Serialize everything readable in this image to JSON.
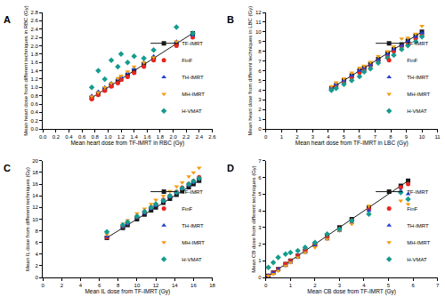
{
  "chart_data": [
    {
      "type": "scatter",
      "title": "A",
      "x_label": "Mean heart dose from TF-IMRT in RBC (Gy)",
      "y_label": "Mean heart dose from different techniques in RBC (Gy)",
      "xlim": [
        0,
        2.6
      ],
      "ylim": [
        0,
        2.8
      ],
      "xticks": [
        {
          "value": 0,
          "label": "0.0"
        },
        0.2,
        0.4,
        0.6,
        0.8,
        {
          "value": 1,
          "label": "1.0"
        },
        1.2,
        1.4,
        1.6,
        1.8,
        {
          "value": 2,
          "label": "2.0"
        },
        2.2,
        2.4,
        2.6
      ],
      "yticks": [
        {
          "value": 0,
          "label": "0.0"
        },
        0.2,
        0.4,
        0.6,
        0.8,
        {
          "value": 1,
          "label": "1.0"
        },
        1.2,
        1.4,
        1.6,
        1.8,
        {
          "value": 2,
          "label": "2.0"
        },
        2.2,
        2.4,
        2.6,
        2.8
      ],
      "grid": false,
      "legend": "lower right",
      "series": [
        {
          "name": "TF-IMRT",
          "color": "#1a1a1a",
          "marker": "square",
          "line_style": "solid",
          "x": [
            0.75,
            0.85,
            0.95,
            1.05,
            1.15,
            1.2,
            1.3,
            1.4,
            1.55,
            1.7,
            2.05,
            2.3
          ],
          "values": [
            0.75,
            0.85,
            0.95,
            1.05,
            1.15,
            1.2,
            1.3,
            1.4,
            1.55,
            1.7,
            2.05,
            2.3
          ]
        },
        {
          "name": "FinF",
          "color": "#e8251f",
          "marker": "circle",
          "line_style": "none",
          "x": [
            0.75,
            0.85,
            0.95,
            1.05,
            1.15,
            1.2,
            1.3,
            1.4,
            1.55,
            1.7,
            2.05,
            2.3
          ],
          "values": [
            0.72,
            0.82,
            0.92,
            1.02,
            1.1,
            1.18,
            1.25,
            1.35,
            1.5,
            1.65,
            2.0,
            2.2
          ]
        },
        {
          "name": "TH-IMRT",
          "color": "#1f3fd6",
          "marker": "triangle-up",
          "line_style": "none",
          "x": [
            0.75,
            0.85,
            0.95,
            1.05,
            1.15,
            1.2,
            1.3,
            1.4,
            1.55,
            1.7,
            2.05,
            2.3
          ],
          "values": [
            0.8,
            0.9,
            1.0,
            1.1,
            1.2,
            1.25,
            1.35,
            1.45,
            1.6,
            1.75,
            2.1,
            2.25
          ]
        },
        {
          "name": "MH-IMRT",
          "color": "#f39c12",
          "marker": "triangle-down",
          "line_style": "none",
          "x": [
            0.75,
            0.85,
            0.95,
            1.05,
            1.15,
            1.2,
            1.3,
            1.4,
            1.55,
            1.7,
            2.05,
            2.3
          ],
          "values": [
            0.78,
            0.88,
            1.0,
            1.1,
            1.22,
            1.28,
            1.38,
            1.5,
            1.6,
            1.72,
            2.1,
            2.3
          ]
        },
        {
          "name": "H-VMAT",
          "color": "#169b8f",
          "marker": "diamond",
          "line_style": "none",
          "x": [
            0.75,
            0.85,
            0.95,
            1.05,
            1.15,
            1.2,
            1.3,
            1.4,
            1.55,
            1.7,
            2.05,
            2.3
          ],
          "values": [
            1.0,
            1.4,
            1.2,
            1.65,
            1.5,
            1.8,
            1.6,
            1.75,
            1.7,
            1.9,
            2.45,
            2.3
          ]
        }
      ]
    },
    {
      "type": "scatter",
      "title": "B",
      "x_label": "Mean heart dose from TF-IMRT in LBC (Gy)",
      "y_label": "Mean heart dose from different techniques in LBC (Gy)",
      "xlim": [
        0,
        11
      ],
      "ylim": [
        0,
        12
      ],
      "xticks": [
        0,
        1,
        2,
        3,
        4,
        5,
        6,
        7,
        8,
        9,
        10,
        11
      ],
      "yticks": [
        0,
        1,
        2,
        3,
        4,
        5,
        6,
        7,
        8,
        9,
        10,
        11,
        12
      ],
      "grid": false,
      "legend": "lower right",
      "series": [
        {
          "name": "TF-IMRT",
          "color": "#1a1a1a",
          "marker": "square",
          "line_style": "solid",
          "x": [
            4.2,
            4.5,
            5.0,
            5.5,
            6.0,
            6.3,
            6.7,
            7.2,
            7.8,
            8.2,
            8.7,
            9.1,
            9.6,
            10.0
          ],
          "values": [
            4.2,
            4.5,
            5.0,
            5.5,
            6.0,
            6.3,
            6.7,
            7.2,
            7.8,
            8.2,
            8.7,
            9.1,
            9.6,
            10.0
          ]
        },
        {
          "name": "FinF",
          "color": "#e8251f",
          "marker": "circle",
          "line_style": "none",
          "x": [
            4.2,
            4.5,
            5.0,
            5.5,
            6.0,
            6.3,
            6.7,
            7.2,
            7.8,
            8.2,
            8.7,
            9.1,
            9.6,
            10.0
          ],
          "values": [
            4.1,
            4.4,
            4.8,
            5.3,
            5.8,
            6.1,
            6.5,
            7.0,
            7.5,
            8.0,
            8.5,
            8.8,
            9.3,
            9.7
          ]
        },
        {
          "name": "TH-IMRT",
          "color": "#1f3fd6",
          "marker": "triangle-up",
          "line_style": "none",
          "x": [
            4.2,
            4.5,
            5.0,
            5.5,
            6.0,
            6.3,
            6.7,
            7.2,
            7.8,
            8.2,
            8.7,
            9.1,
            9.6,
            10.0
          ],
          "values": [
            4.3,
            4.6,
            5.0,
            5.5,
            6.0,
            6.3,
            6.6,
            7.1,
            7.7,
            8.2,
            8.6,
            9.0,
            9.5,
            9.9
          ]
        },
        {
          "name": "MH-IMRT",
          "color": "#f39c12",
          "marker": "triangle-down",
          "line_style": "none",
          "x": [
            4.2,
            4.5,
            5.0,
            5.5,
            6.0,
            6.3,
            6.7,
            7.2,
            7.8,
            8.2,
            8.7,
            9.1,
            9.6,
            10.0
          ],
          "values": [
            4.4,
            4.8,
            5.2,
            5.8,
            6.3,
            6.5,
            6.9,
            7.5,
            8.0,
            8.5,
            9.3,
            9.4,
            9.8,
            10.6
          ]
        },
        {
          "name": "H-VMAT",
          "color": "#169b8f",
          "marker": "diamond",
          "line_style": "none",
          "x": [
            4.2,
            4.5,
            5.0,
            5.5,
            6.0,
            6.3,
            6.7,
            7.2,
            7.8,
            8.2,
            8.7,
            9.1,
            9.6,
            10.0
          ],
          "values": [
            4.0,
            4.2,
            4.6,
            5.0,
            5.4,
            5.9,
            6.2,
            6.8,
            7.3,
            7.6,
            8.2,
            8.6,
            9.0,
            9.5
          ]
        }
      ]
    },
    {
      "type": "scatter",
      "title": "C",
      "x_label": "Mean IL dose from TF-IMRT (Gy)",
      "y_label": "Mean IL dose from different techniques (Gy)",
      "xlim": [
        0,
        18
      ],
      "ylim": [
        0,
        20
      ],
      "xticks": [
        0,
        2,
        4,
        6,
        8,
        10,
        12,
        14,
        16,
        18
      ],
      "yticks": [
        0,
        2,
        4,
        6,
        8,
        10,
        12,
        14,
        16,
        18,
        20
      ],
      "grid": false,
      "legend": "lower right",
      "series": [
        {
          "name": "TF-IMRT",
          "color": "#1a1a1a",
          "marker": "square",
          "line_style": "solid",
          "x": [
            6.8,
            8.5,
            9.0,
            10.0,
            10.8,
            11.5,
            12.0,
            12.8,
            13.5,
            14.2,
            14.8,
            15.5,
            16.0,
            16.6
          ],
          "values": [
            6.8,
            8.5,
            9.0,
            10.0,
            10.8,
            11.5,
            12.0,
            12.8,
            13.5,
            14.2,
            14.8,
            15.5,
            16.0,
            16.6
          ]
        },
        {
          "name": "FinF",
          "color": "#e8251f",
          "marker": "circle",
          "line_style": "none",
          "x": [
            6.8,
            8.5,
            9.0,
            10.0,
            10.8,
            11.5,
            12.0,
            12.8,
            13.5,
            14.2,
            14.8,
            15.5,
            16.0,
            16.6
          ],
          "values": [
            6.9,
            8.8,
            9.3,
            10.4,
            11.2,
            12.0,
            12.5,
            13.3,
            14.0,
            14.7,
            15.4,
            16.0,
            16.5,
            17.2
          ]
        },
        {
          "name": "TH-IMRT",
          "color": "#1f3fd6",
          "marker": "triangle-up",
          "line_style": "none",
          "x": [
            6.8,
            8.5,
            9.0,
            10.0,
            10.8,
            11.5,
            12.0,
            12.8,
            13.5,
            14.2,
            14.8,
            15.5,
            16.0,
            16.6
          ],
          "values": [
            7.0,
            8.7,
            9.2,
            10.3,
            11.0,
            11.8,
            12.3,
            13.0,
            13.8,
            14.5,
            15.2,
            15.8,
            16.3,
            16.9
          ]
        },
        {
          "name": "MH-IMRT",
          "color": "#f39c12",
          "marker": "triangle-down",
          "line_style": "none",
          "x": [
            6.8,
            8.5,
            9.0,
            10.0,
            10.8,
            11.5,
            12.0,
            12.8,
            13.5,
            14.2,
            14.8,
            15.5,
            16.0,
            16.6
          ],
          "values": [
            7.4,
            9.2,
            9.8,
            11.0,
            11.8,
            12.6,
            13.3,
            14.0,
            14.8,
            15.6,
            16.3,
            17.3,
            18.0,
            18.8
          ]
        },
        {
          "name": "H-VMAT",
          "color": "#169b8f",
          "marker": "diamond",
          "line_style": "none",
          "x": [
            6.8,
            8.5,
            9.0,
            10.0,
            10.8,
            11.5,
            12.0,
            12.8,
            13.5,
            14.2,
            14.8,
            15.5,
            16.0,
            16.6
          ],
          "values": [
            7.8,
            9.0,
            9.5,
            10.5,
            11.3,
            12.0,
            12.6,
            13.2,
            14.0,
            14.6,
            15.3,
            16.0,
            16.5,
            17.0
          ]
        }
      ]
    },
    {
      "type": "scatter",
      "title": "D",
      "x_label": "Mean CB dose from TF-IMRT (Gy)",
      "y_label": "Mean CB dose from different techniques (Gy)",
      "xlim": [
        0,
        7
      ],
      "ylim": [
        0,
        7
      ],
      "xticks": [
        0,
        1,
        2,
        3,
        4,
        5,
        6,
        7
      ],
      "yticks": [
        0,
        1,
        2,
        3,
        4,
        5,
        6,
        7
      ],
      "grid": false,
      "legend": "lower right",
      "series": [
        {
          "name": "TF-IMRT",
          "color": "#1a1a1a",
          "marker": "square",
          "line_style": "solid",
          "x": [
            0.1,
            0.3,
            0.5,
            0.8,
            1.0,
            1.3,
            1.6,
            2.0,
            2.5,
            3.0,
            3.5,
            4.2,
            5.5,
            5.8
          ],
          "values": [
            0.1,
            0.3,
            0.5,
            0.8,
            1.0,
            1.3,
            1.6,
            2.0,
            2.5,
            3.0,
            3.5,
            4.2,
            5.5,
            5.8
          ]
        },
        {
          "name": "FinF",
          "color": "#e8251f",
          "marker": "circle",
          "line_style": "none",
          "x": [
            0.1,
            0.3,
            0.5,
            0.8,
            1.0,
            1.3,
            1.6,
            2.0,
            2.5,
            3.0,
            3.5,
            4.2,
            5.5,
            5.8
          ],
          "values": [
            0.1,
            0.3,
            0.5,
            0.8,
            1.0,
            1.3,
            1.6,
            2.0,
            2.4,
            2.9,
            3.4,
            4.1,
            5.4,
            5.6
          ]
        },
        {
          "name": "TH-IMRT",
          "color": "#1f3fd6",
          "marker": "triangle-up",
          "line_style": "none",
          "x": [
            0.1,
            0.3,
            0.5,
            0.8,
            1.0,
            1.3,
            1.6,
            2.0,
            2.5,
            3.0,
            3.5,
            4.2,
            5.5,
            5.8
          ],
          "values": [
            0.1,
            0.3,
            0.5,
            0.7,
            0.9,
            1.2,
            1.5,
            1.9,
            2.3,
            2.8,
            3.3,
            4.0,
            5.2,
            5.0
          ]
        },
        {
          "name": "MH-IMRT",
          "color": "#f39c12",
          "marker": "triangle-down",
          "line_style": "none",
          "x": [
            0.1,
            0.3,
            0.5,
            0.8,
            1.0,
            1.3,
            1.6,
            2.0,
            2.5,
            3.0,
            3.5,
            4.2,
            5.5,
            5.8
          ],
          "values": [
            0.1,
            0.2,
            0.4,
            0.7,
            0.9,
            1.2,
            1.5,
            1.8,
            2.3,
            2.8,
            3.2,
            4.3,
            4.6,
            4.4
          ]
        },
        {
          "name": "H-VMAT",
          "color": "#169b8f",
          "marker": "diamond",
          "line_style": "none",
          "x": [
            0.1,
            0.3,
            0.5,
            0.8,
            1.0,
            1.3,
            1.6,
            2.0,
            2.5,
            3.0,
            3.5,
            4.2,
            5.5,
            5.8
          ],
          "values": [
            0.6,
            0.9,
            1.2,
            1.4,
            1.5,
            1.6,
            1.8,
            2.1,
            2.6,
            2.9,
            3.4,
            3.8,
            5.1,
            4.7
          ]
        }
      ]
    }
  ]
}
